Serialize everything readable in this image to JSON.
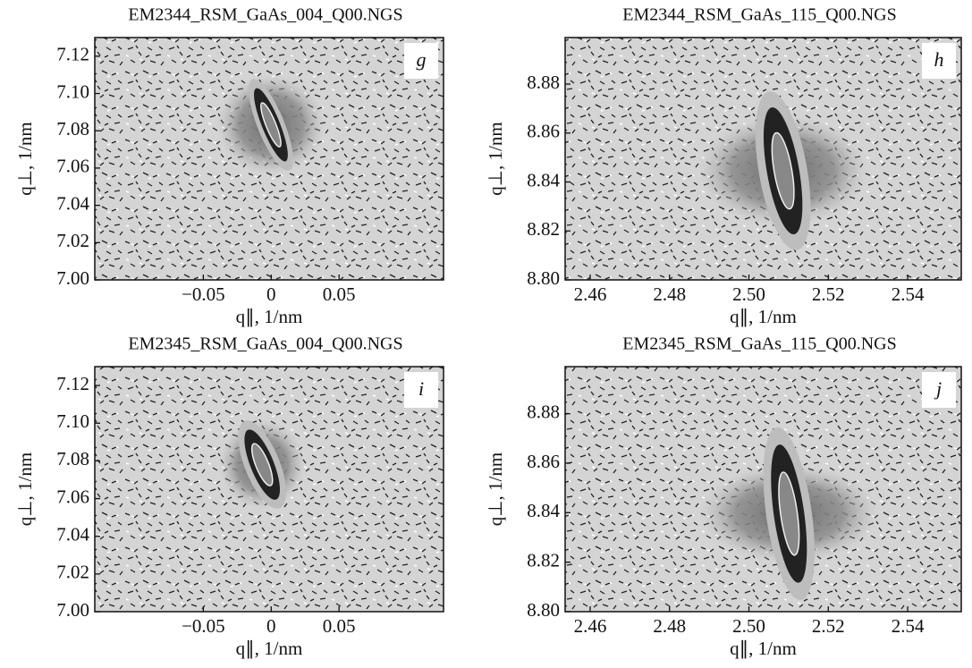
{
  "chart_data": [
    {
      "type": "contour",
      "title": "EM2344_RSM_GaAs_004_Q00.NGS",
      "panel_label": "g",
      "x_label": "q∥, 1/nm",
      "y_label": "q⊥, 1/nm",
      "xlim": [
        -0.13,
        0.127
      ],
      "ylim": [
        7.0,
        7.13
      ],
      "xticks": [
        {
          "value": -0.05,
          "label": "−0.05"
        },
        0,
        0.05
      ],
      "yticks": [
        {
          "value": 7.0,
          "label": "7.00"
        },
        7.02,
        7.04,
        7.06,
        7.08,
        {
          "value": 7.1,
          "label": "7.10"
        },
        7.12
      ]
    },
    {
      "type": "contour",
      "title": "EM2344_RSM_GaAs_115_Q00.NGS",
      "panel_label": "h",
      "x_label": "q∥, 1/nm",
      "y_label": "q⊥, 1/nm",
      "xlim": [
        2.4537,
        2.5535
      ],
      "ylim": [
        8.8,
        8.899
      ],
      "xticks": [
        2.46,
        2.48,
        {
          "value": 2.5,
          "label": "2.50"
        },
        2.52,
        2.54
      ],
      "yticks": [
        {
          "value": 8.8,
          "label": "8.80"
        },
        8.82,
        8.84,
        8.86,
        8.88
      ]
    },
    {
      "type": "contour",
      "title": "EM2345_RSM_GaAs_004_Q00.NGS",
      "panel_label": "i",
      "x_label": "q∥, 1/nm",
      "y_label": "q⊥, 1/nm",
      "xlim": [
        -0.13,
        0.127
      ],
      "ylim": [
        7.0,
        7.13
      ],
      "xticks": [
        {
          "value": -0.05,
          "label": "−0.05"
        },
        0,
        0.05
      ],
      "yticks": [
        {
          "value": 7.0,
          "label": "7.00"
        },
        7.02,
        7.04,
        7.06,
        7.08,
        {
          "value": 7.1,
          "label": "7.10"
        },
        7.12
      ]
    },
    {
      "type": "contour",
      "title": "EM2345_RSM_GaAs_115_Q00.NGS",
      "panel_label": "j",
      "x_label": "q∥, 1/nm",
      "y_label": "q⊥, 1/nm",
      "xlim": [
        2.4537,
        2.5535
      ],
      "ylim": [
        8.8,
        8.899
      ],
      "xticks": [
        2.46,
        2.48,
        {
          "value": 2.5,
          "label": "2.50"
        },
        2.52,
        2.54
      ],
      "yticks": [
        {
          "value": 8.8,
          "label": "8.80"
        },
        8.82,
        8.84,
        8.86,
        8.88
      ]
    }
  ]
}
